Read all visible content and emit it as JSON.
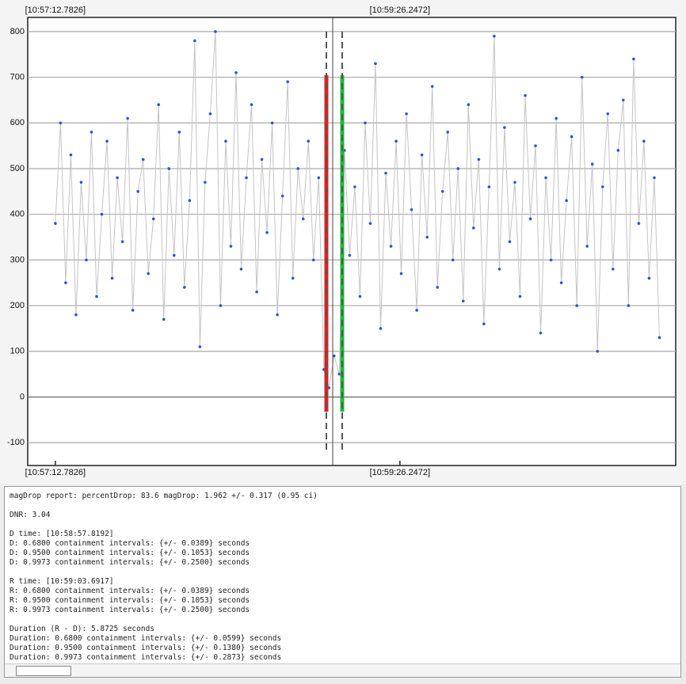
{
  "chart_data": {
    "type": "scatter",
    "x": [
      0,
      2,
      4,
      6,
      8,
      10,
      12,
      14,
      16,
      18,
      20,
      22,
      24,
      26,
      28,
      30,
      32,
      34,
      36,
      38,
      40,
      42,
      44,
      46,
      48,
      50,
      52,
      54,
      56,
      58,
      60,
      62,
      64,
      66,
      68,
      70,
      72,
      74,
      76,
      78,
      80,
      82,
      84,
      86,
      88,
      90,
      92,
      94,
      96,
      98,
      100,
      102,
      104,
      106,
      108,
      110,
      112,
      114,
      116,
      118,
      120,
      122,
      124,
      126,
      128,
      130,
      132,
      134,
      136,
      138,
      140,
      142,
      144,
      146,
      148,
      150,
      152,
      154,
      156,
      158,
      160,
      162,
      164,
      166,
      168,
      170,
      172,
      174,
      176,
      178,
      180,
      182,
      184,
      186,
      188,
      190,
      192,
      194,
      196,
      198,
      200,
      202,
      204,
      206,
      208,
      210,
      212,
      214,
      216,
      218,
      220,
      222,
      224,
      226,
      228,
      230,
      232,
      234
    ],
    "values": [
      380,
      600,
      250,
      530,
      180,
      470,
      300,
      580,
      220,
      400,
      560,
      260,
      480,
      340,
      610,
      190,
      450,
      520,
      270,
      390,
      640,
      170,
      500,
      310,
      580,
      240,
      430,
      780,
      110,
      470,
      620,
      800,
      200,
      560,
      330,
      710,
      280,
      480,
      640,
      230,
      520,
      360,
      600,
      180,
      440,
      690,
      260,
      500,
      390,
      560,
      300,
      480,
      60,
      20,
      90,
      50,
      540,
      310,
      460,
      220,
      600,
      380,
      730,
      150,
      490,
      330,
      560,
      270,
      620,
      410,
      190,
      530,
      350,
      680,
      240,
      450,
      580,
      300,
      500,
      210,
      640,
      370,
      520,
      160,
      460,
      790,
      280,
      590,
      340,
      470,
      220,
      660,
      390,
      550,
      140,
      480,
      300,
      610,
      250,
      430,
      570,
      200,
      700,
      330,
      510,
      100,
      460,
      620,
      280,
      540,
      650,
      200,
      740,
      380,
      560,
      260,
      480,
      130
    ],
    "color": "#2b54d8",
    "line_color": "#c4c4c4",
    "xlim": [
      -10.7,
      240.3
    ],
    "xticks": [
      {
        "value": 0,
        "label": "[10:57:12.7826]"
      },
      {
        "value": 133.4646,
        "label": "[10:59:26.2472]"
      }
    ],
    "ylim": [
      -150,
      831
    ],
    "yticks": [
      -100,
      0,
      100,
      200,
      300,
      400,
      500,
      600,
      700,
      800
    ],
    "grid": true
  },
  "report": {
    "blocks": [
      {
        "lines": [
          "magDrop report: percentDrop: 83.6 magDrop: 1.962 +/- 0.317 (0.95 ci)"
        ]
      },
      {
        "lines": [
          "DNR: 3.04"
        ]
      },
      {
        "lines": [
          "D time: [10:58:57.8192]",
          "D: 0.6800 containment intervals: {+/- 0.0389} seconds",
          "D: 0.9500 containment intervals: {+/- 0.1053} seconds",
          "D: 0.9973 containment intervals: {+/- 0.2500} seconds"
        ]
      },
      {
        "lines": [
          "R time: [10:59:03.6917]",
          "R: 0.6800 containment intervals: {+/- 0.0389} seconds",
          "R: 0.9500 containment intervals: {+/- 0.1053} seconds",
          "R: 0.9973 containment intervals: {+/- 0.2500} seconds"
        ]
      },
      {
        "lines": [
          "Duration (R - D): 5.8725 seconds",
          "Duration: 0.6800 containment intervals: {+/- 0.0599} seconds",
          "Duration: 0.9500 containment intervals: {+/- 0.1380} seconds",
          "Duration: 0.9973 containment intervals: {+/- 0.2873} seconds"
        ]
      }
    ]
  }
}
